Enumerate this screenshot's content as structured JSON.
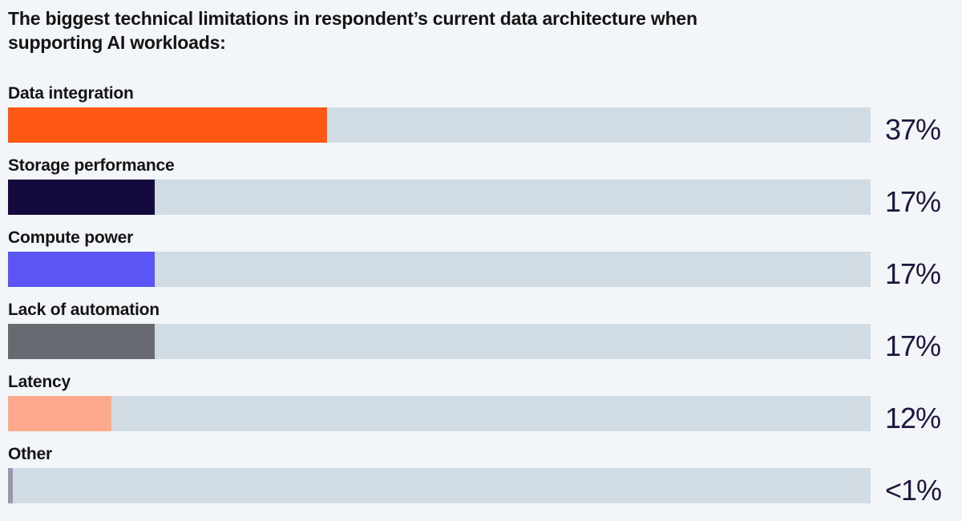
{
  "chart_data": {
    "type": "bar",
    "orientation": "horizontal",
    "title": "The biggest technical limitations in respondent’s current data architecture when supporting AI workloads:",
    "categories": [
      "Data integration",
      "Storage performance",
      "Compute power",
      "Lack of automation",
      "Latency",
      "Other"
    ],
    "values": [
      37,
      17,
      17,
      17,
      12,
      0.5
    ],
    "value_labels": [
      "37%",
      "17%",
      "17%",
      "17%",
      "12%",
      "<1%"
    ],
    "colors": [
      "#ff5714",
      "#150a3d",
      "#5b55f5",
      "#676a70",
      "#ffa98c",
      "#9a96b2"
    ],
    "track_color": "#d1dbe3",
    "xlim": [
      0,
      100
    ],
    "legend": "none",
    "grid": false
  }
}
